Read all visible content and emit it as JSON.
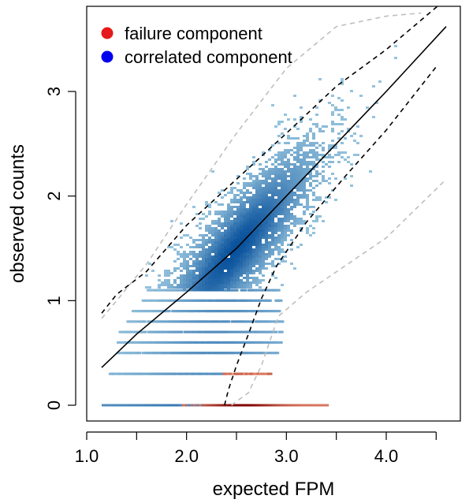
{
  "chart_data": {
    "type": "scatter",
    "xlabel": "expected FPM",
    "ylabel": "observed counts",
    "xlim": [
      1.0,
      4.7
    ],
    "ylim": [
      0.0,
      3.7
    ],
    "x_ticks": [
      1.0,
      1.5,
      2.0,
      2.5,
      3.0,
      3.5,
      4.0,
      4.5
    ],
    "x_tick_labels": [
      "1.0",
      "",
      "2.0",
      "",
      "3.0",
      "",
      "4.0",
      ""
    ],
    "y_ticks": [
      0,
      1,
      2,
      3
    ],
    "y_tick_labels": [
      "0",
      "1",
      "2",
      "3"
    ],
    "legend": {
      "position": "top-left",
      "entries": [
        {
          "label": "failure component",
          "color": "#e41a1c"
        },
        {
          "label": "correlated component",
          "color": "#0000ee"
        }
      ]
    },
    "series": [
      {
        "style": "solid",
        "color": "#000000",
        "x": [
          1.15,
          1.5,
          2.0,
          2.5,
          3.0,
          3.5,
          4.0,
          4.6
        ],
        "y": [
          0.36,
          0.68,
          1.08,
          1.5,
          2.0,
          2.5,
          3.0,
          3.62
        ]
      },
      {
        "style": "dashed",
        "color": "#000000",
        "x": [
          1.15,
          1.3,
          1.6,
          2.0,
          2.5,
          3.0,
          3.5,
          4.0,
          4.52
        ],
        "y": [
          0.88,
          1.06,
          1.28,
          1.72,
          2.16,
          2.6,
          3.05,
          3.4,
          3.82
        ]
      },
      {
        "style": "dashed",
        "color": "#000000",
        "x": [
          2.38,
          2.42,
          2.5,
          2.62,
          2.75,
          2.9,
          3.2,
          3.6,
          4.0,
          4.52
        ],
        "y": [
          0.0,
          0.15,
          0.38,
          0.68,
          1.02,
          1.33,
          1.75,
          2.2,
          2.63,
          3.26
        ]
      },
      {
        "style": "dashed",
        "color": "#bebebe",
        "x": [
          1.15,
          1.3,
          1.6,
          2.0,
          2.5,
          3.0,
          3.5,
          4.0,
          4.35
        ],
        "y": [
          0.83,
          1.0,
          1.35,
          1.92,
          2.6,
          3.22,
          3.62,
          3.72,
          3.75
        ]
      },
      {
        "style": "dashed",
        "color": "#bebebe",
        "x": [
          2.45,
          2.52,
          2.62,
          2.75,
          2.92,
          3.2,
          3.6,
          4.0,
          4.6
        ],
        "y": [
          0.0,
          0.05,
          0.12,
          0.38,
          0.85,
          1.08,
          1.34,
          1.6,
          2.16
        ]
      }
    ],
    "point_rows": [
      {
        "y": 0.0,
        "x_range": [
          1.15,
          3.4
        ],
        "component": "failure-dominant"
      },
      {
        "y": 0.3,
        "x_range": [
          1.22,
          2.85
        ],
        "component": "mixed"
      },
      {
        "y": 0.5,
        "x_range": [
          1.3,
          2.9
        ],
        "component": "correlated"
      },
      {
        "y": 0.6,
        "x_range": [
          1.3,
          2.95
        ],
        "component": "correlated"
      },
      {
        "y": 0.7,
        "x_range": [
          1.32,
          2.95
        ],
        "component": "correlated"
      },
      {
        "y": 0.8,
        "x_range": [
          1.35,
          2.95
        ],
        "component": "correlated"
      },
      {
        "y": 0.9,
        "x_range": [
          1.45,
          2.95
        ],
        "component": "correlated"
      },
      {
        "y": 1.0,
        "x_range": [
          1.55,
          2.95
        ],
        "component": "correlated"
      },
      {
        "y": 1.1,
        "x_range": [
          1.6,
          2.92
        ],
        "component": "correlated"
      }
    ],
    "scatter_cloud": {
      "center": [
        2.48,
        1.5
      ],
      "x_spread": 0.42,
      "y_spread": 0.5,
      "correlation": 0.85
    }
  }
}
